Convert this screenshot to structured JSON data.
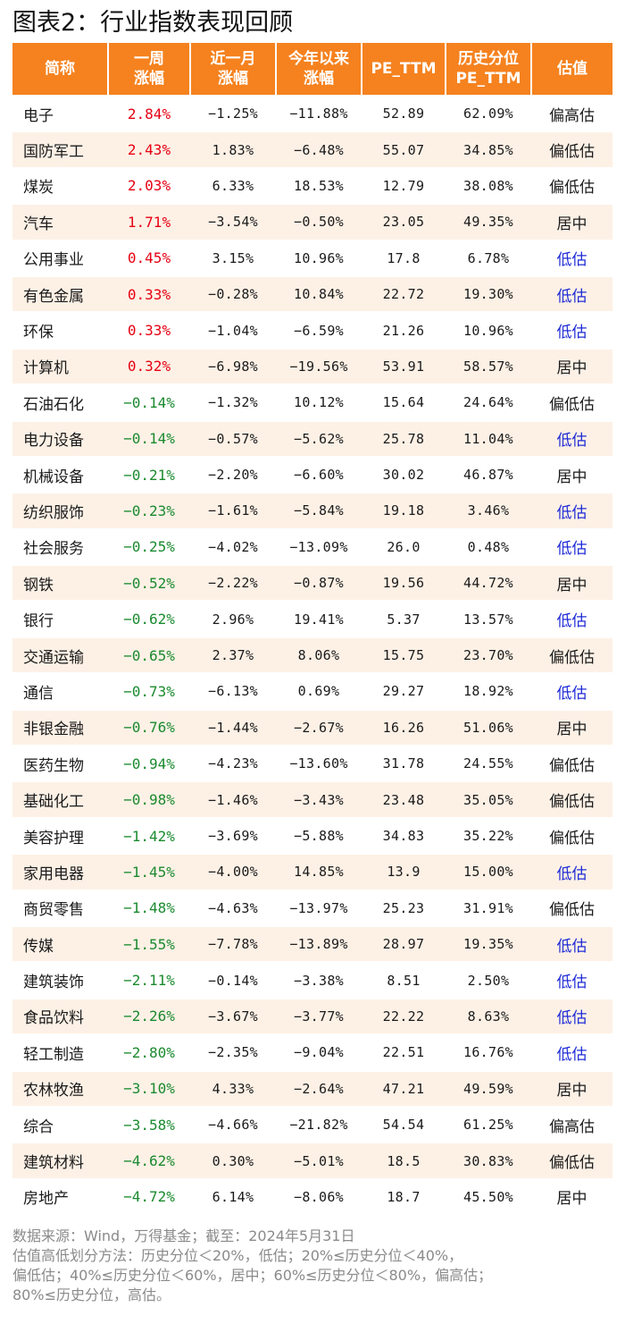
{
  "title": "图表2：行业指数表现回顾",
  "colors": {
    "header_bg": "#f5821f",
    "header_text": "#ffffff",
    "row_alt_bg": "#fdf1e6",
    "positive": "#e60012",
    "negative": "#1a8a2e",
    "undervalued": "#1f2bd6",
    "text": "#1a1a1a",
    "footer_text": "#8a8a8a"
  },
  "table": {
    "headers": [
      [
        "简称"
      ],
      [
        "一周",
        "涨幅"
      ],
      [
        "近一月",
        "涨幅"
      ],
      [
        "今年以来",
        "涨幅"
      ],
      [
        "PE_TTM"
      ],
      [
        "历史分位",
        "PE_TTM"
      ],
      [
        "估值"
      ]
    ],
    "rows": [
      {
        "name": "电子",
        "week": "2.84%",
        "month": "−1.25%",
        "ytd": "−11.88%",
        "pe": "52.89",
        "pct": "62.09%",
        "est": "偏高估"
      },
      {
        "name": "国防军工",
        "week": "2.43%",
        "month": "1.83%",
        "ytd": "−6.48%",
        "pe": "55.07",
        "pct": "34.85%",
        "est": "偏低估"
      },
      {
        "name": "煤炭",
        "week": "2.03%",
        "month": "6.33%",
        "ytd": "18.53%",
        "pe": "12.79",
        "pct": "38.08%",
        "est": "偏低估"
      },
      {
        "name": "汽车",
        "week": "1.71%",
        "month": "−3.54%",
        "ytd": "−0.50%",
        "pe": "23.05",
        "pct": "49.35%",
        "est": "居中"
      },
      {
        "name": "公用事业",
        "week": "0.45%",
        "month": "3.15%",
        "ytd": "10.96%",
        "pe": "17.8",
        "pct": "6.78%",
        "est": "低估"
      },
      {
        "name": "有色金属",
        "week": "0.33%",
        "month": "−0.28%",
        "ytd": "10.84%",
        "pe": "22.72",
        "pct": "19.30%",
        "est": "低估"
      },
      {
        "name": "环保",
        "week": "0.33%",
        "month": "−1.04%",
        "ytd": "−6.59%",
        "pe": "21.26",
        "pct": "10.96%",
        "est": "低估"
      },
      {
        "name": "计算机",
        "week": "0.32%",
        "month": "−6.98%",
        "ytd": "−19.56%",
        "pe": "53.91",
        "pct": "58.57%",
        "est": "居中"
      },
      {
        "name": "石油石化",
        "week": "−0.14%",
        "month": "−1.32%",
        "ytd": "10.12%",
        "pe": "15.64",
        "pct": "24.64%",
        "est": "偏低估"
      },
      {
        "name": "电力设备",
        "week": "−0.14%",
        "month": "−0.57%",
        "ytd": "−5.62%",
        "pe": "25.78",
        "pct": "11.04%",
        "est": "低估"
      },
      {
        "name": "机械设备",
        "week": "−0.21%",
        "month": "−2.20%",
        "ytd": "−6.60%",
        "pe": "30.02",
        "pct": "46.87%",
        "est": "居中"
      },
      {
        "name": "纺织服饰",
        "week": "−0.23%",
        "month": "−1.61%",
        "ytd": "−5.84%",
        "pe": "19.18",
        "pct": "3.46%",
        "est": "低估"
      },
      {
        "name": "社会服务",
        "week": "−0.25%",
        "month": "−4.02%",
        "ytd": "−13.09%",
        "pe": "26.0",
        "pct": "0.48%",
        "est": "低估"
      },
      {
        "name": "钢铁",
        "week": "−0.52%",
        "month": "−2.22%",
        "ytd": "−0.87%",
        "pe": "19.56",
        "pct": "44.72%",
        "est": "居中"
      },
      {
        "name": "银行",
        "week": "−0.62%",
        "month": "2.96%",
        "ytd": "19.41%",
        "pe": "5.37",
        "pct": "13.57%",
        "est": "低估"
      },
      {
        "name": "交通运输",
        "week": "−0.65%",
        "month": "2.37%",
        "ytd": "8.06%",
        "pe": "15.75",
        "pct": "23.70%",
        "est": "偏低估"
      },
      {
        "name": "通信",
        "week": "−0.73%",
        "month": "−6.13%",
        "ytd": "0.69%",
        "pe": "29.27",
        "pct": "18.92%",
        "est": "低估"
      },
      {
        "name": "非银金融",
        "week": "−0.76%",
        "month": "−1.44%",
        "ytd": "−2.67%",
        "pe": "16.26",
        "pct": "51.06%",
        "est": "居中"
      },
      {
        "name": "医药生物",
        "week": "−0.94%",
        "month": "−4.23%",
        "ytd": "−13.60%",
        "pe": "31.78",
        "pct": "24.55%",
        "est": "偏低估"
      },
      {
        "name": "基础化工",
        "week": "−0.98%",
        "month": "−1.46%",
        "ytd": "−3.43%",
        "pe": "23.48",
        "pct": "35.05%",
        "est": "偏低估"
      },
      {
        "name": "美容护理",
        "week": "−1.42%",
        "month": "−3.69%",
        "ytd": "−5.88%",
        "pe": "34.83",
        "pct": "35.22%",
        "est": "偏低估"
      },
      {
        "name": "家用电器",
        "week": "−1.45%",
        "month": "−4.00%",
        "ytd": "14.85%",
        "pe": "13.9",
        "pct": "15.00%",
        "est": "低估"
      },
      {
        "name": "商贸零售",
        "week": "−1.48%",
        "month": "−4.63%",
        "ytd": "−13.97%",
        "pe": "25.23",
        "pct": "31.91%",
        "est": "偏低估"
      },
      {
        "name": "传媒",
        "week": "−1.55%",
        "month": "−7.78%",
        "ytd": "−13.89%",
        "pe": "28.97",
        "pct": "19.35%",
        "est": "低估"
      },
      {
        "name": "建筑装饰",
        "week": "−2.11%",
        "month": "−0.14%",
        "ytd": "−3.38%",
        "pe": "8.51",
        "pct": "2.50%",
        "est": "低估"
      },
      {
        "name": "食品饮料",
        "week": "−2.26%",
        "month": "−3.67%",
        "ytd": "−3.77%",
        "pe": "22.22",
        "pct": "8.63%",
        "est": "低估"
      },
      {
        "name": "轻工制造",
        "week": "−2.80%",
        "month": "−2.35%",
        "ytd": "−9.04%",
        "pe": "22.51",
        "pct": "16.76%",
        "est": "低估"
      },
      {
        "name": "农林牧渔",
        "week": "−3.10%",
        "month": "4.33%",
        "ytd": "−2.64%",
        "pe": "47.21",
        "pct": "49.59%",
        "est": "居中"
      },
      {
        "name": "综合",
        "week": "−3.58%",
        "month": "−4.66%",
        "ytd": "−21.82%",
        "pe": "54.54",
        "pct": "61.25%",
        "est": "偏高估"
      },
      {
        "name": "建筑材料",
        "week": "−4.62%",
        "month": "0.30%",
        "ytd": "−5.01%",
        "pe": "18.5",
        "pct": "30.83%",
        "est": "偏低估"
      },
      {
        "name": "房地产",
        "week": "−4.72%",
        "month": "6.14%",
        "ytd": "−8.06%",
        "pe": "18.7",
        "pct": "45.50%",
        "est": "居中"
      }
    ]
  },
  "footer": {
    "lines": [
      "数据来源：Wind，万得基金；截至：2024年5月31日",
      "估值高低划分方法：历史分位＜20%，低估；20%≤历史分位＜40%，",
      "偏低估；40%≤历史分位＜60%，居中；60%≤历史分位＜80%，偏高估；",
      "80%≤历史分位，高估。"
    ]
  }
}
